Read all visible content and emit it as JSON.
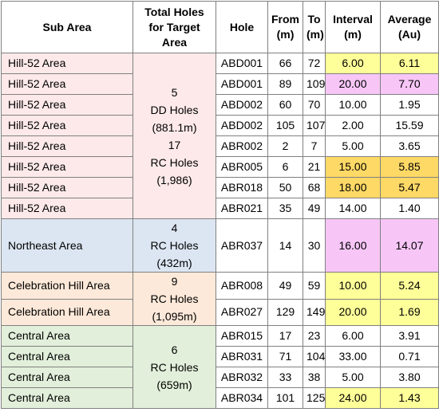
{
  "headers": {
    "sub_area": "Sub Area",
    "total_holes": "Total Holes for Target Area",
    "hole": "Hole",
    "from": "From (m)",
    "to": "To (m)",
    "interval": "Interval (m)",
    "average": "Average (Au)"
  },
  "colors": {
    "hill52": "#fde9e9",
    "northeast": "#dce6f2",
    "celebration": "#fde9d9",
    "central": "#e2efda",
    "yellow": "#ffff99",
    "pink": "#f7c6f7",
    "orange": "#ffd966",
    "white": "#ffffff",
    "border": "#808080"
  },
  "groups": [
    {
      "key": "hill52",
      "total_lines": [
        "5",
        "DD Holes",
        "(881.1m)",
        "17",
        "RC Holes",
        "(1,986)"
      ],
      "rows": [
        {
          "sub_area": "Hill-52 Area",
          "hole": "ABD001",
          "from": "66",
          "to": "72",
          "interval": "6.00",
          "average": "6.11",
          "highlight": "yellow"
        },
        {
          "sub_area": "Hill-52 Area",
          "hole": "ABD001",
          "from": "89",
          "to": "109",
          "interval": "20.00",
          "average": "7.70",
          "highlight": "pink"
        },
        {
          "sub_area": "Hill-52 Area",
          "hole": "ABD002",
          "from": "60",
          "to": "70",
          "interval": "10.00",
          "average": "1.95",
          "highlight": "white"
        },
        {
          "sub_area": "Hill-52 Area",
          "hole": "ABD002",
          "from": "105",
          "to": "107",
          "interval": "2.00",
          "average": "15.59",
          "highlight": "white"
        },
        {
          "sub_area": "Hill-52 Area",
          "hole": "ABR002",
          "from": "2",
          "to": "7",
          "interval": "5.00",
          "average": "3.65",
          "highlight": "white"
        },
        {
          "sub_area": "Hill-52 Area",
          "hole": "ABR005",
          "from": "6",
          "to": "21",
          "interval": "15.00",
          "average": "5.85",
          "highlight": "orange"
        },
        {
          "sub_area": "Hill-52 Area",
          "hole": "ABR018",
          "from": "50",
          "to": "68",
          "interval": "18.00",
          "average": "5.47",
          "highlight": "orange"
        },
        {
          "sub_area": "Hill-52 Area",
          "hole": "ABR021",
          "from": "35",
          "to": "49",
          "interval": "14.00",
          "average": "1.40",
          "highlight": "white"
        }
      ]
    },
    {
      "key": "northeast",
      "total_lines": [
        "4",
        "RC Holes",
        "(432m)"
      ],
      "rows": [
        {
          "sub_area": "Northeast Area",
          "hole": "ABR037",
          "from": "14",
          "to": "30",
          "interval": "16.00",
          "average": "14.07",
          "highlight": "pink",
          "tall": true
        }
      ]
    },
    {
      "key": "celebration",
      "total_lines": [
        "9",
        "RC Holes",
        "(1,095m)"
      ],
      "rows": [
        {
          "sub_area": "Celebration Hill Area",
          "hole": "ABR008",
          "from": "49",
          "to": "59",
          "interval": "10.00",
          "average": "5.24",
          "highlight": "yellow"
        },
        {
          "sub_area": "Celebration Hill Area",
          "hole": "ABR027",
          "from": "129",
          "to": "149",
          "interval": "20.00",
          "average": "1.69",
          "highlight": "yellow"
        }
      ]
    },
    {
      "key": "central",
      "total_lines": [
        "6",
        "RC Holes",
        "(659m)"
      ],
      "rows": [
        {
          "sub_area": "Central Area",
          "hole": "ABR015",
          "from": "17",
          "to": "23",
          "interval": "6.00",
          "average": "3.91",
          "highlight": "white"
        },
        {
          "sub_area": "Central Area",
          "hole": "ABR031",
          "from": "71",
          "to": "104",
          "interval": "33.00",
          "average": "0.71",
          "highlight": "white"
        },
        {
          "sub_area": "Central Area",
          "hole": "ABR032",
          "from": "33",
          "to": "38",
          "interval": "5.00",
          "average": "3.80",
          "highlight": "white"
        },
        {
          "sub_area": "Central Area",
          "hole": "ABR034",
          "from": "101",
          "to": "125",
          "interval": "24.00",
          "average": "1.43",
          "highlight": "yellow"
        }
      ]
    }
  ]
}
